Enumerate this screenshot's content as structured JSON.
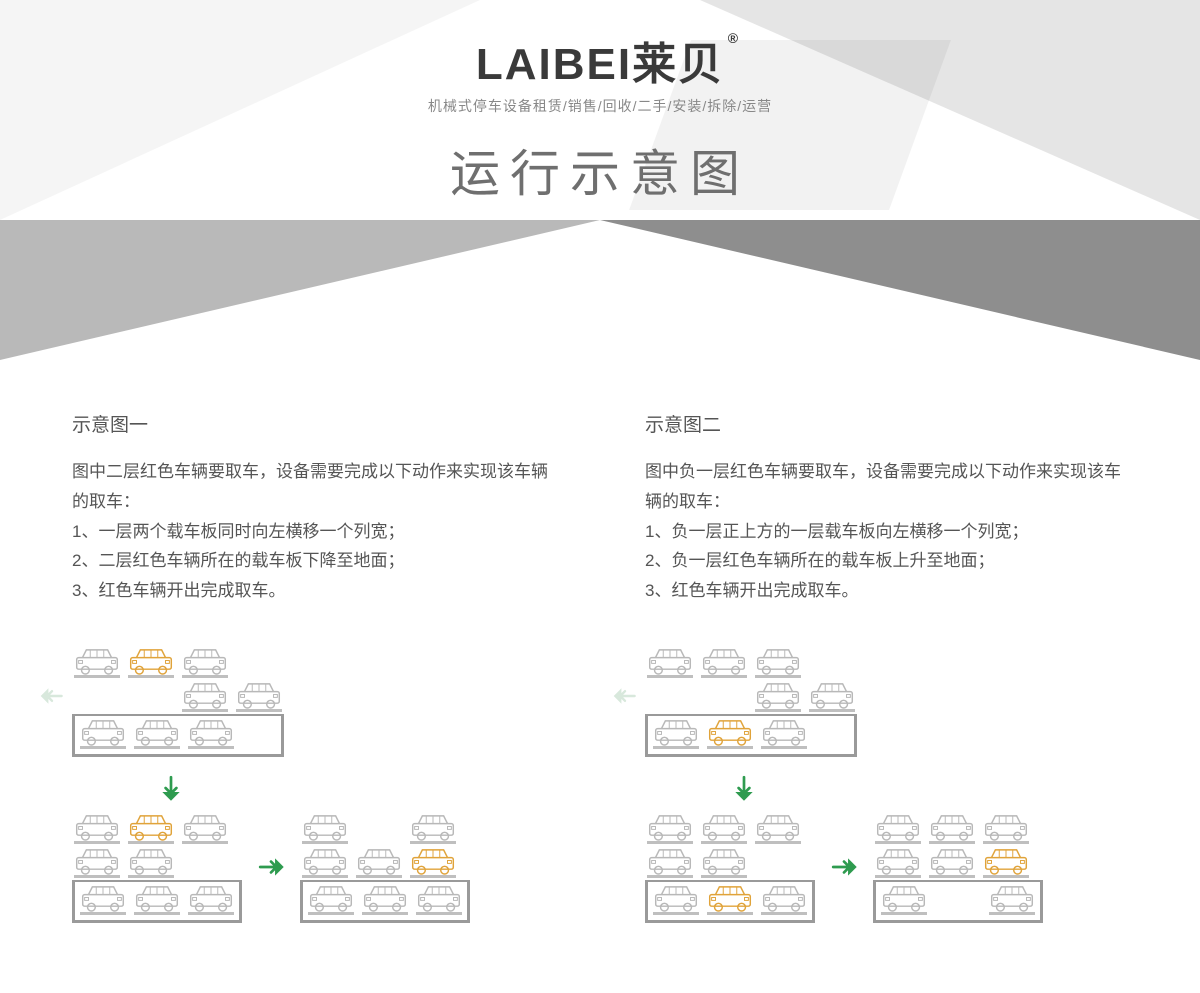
{
  "header": {
    "brand": "LAIBEI莱贝",
    "reg_mark": "®",
    "tagline": "机械式停车设备租赁/销售/回收/二手/安装/拆除/运营",
    "title": "运行示意图",
    "panel_colors": {
      "top_face": "#ffffff",
      "left_fold": "#bdbdbd",
      "right_fold": "#8e8e8e",
      "left_shade": "rgba(0,0,0,0.04)",
      "right_shade": "rgba(0,0,0,0.10)"
    }
  },
  "colors": {
    "car_normal": "#b8b8b8",
    "car_highlight": "#e0a33a",
    "arrow_green": "#2e9b4f",
    "arrow_faint": "#d8e8dc",
    "pit_border": "#9a9a9a",
    "text": "#555555"
  },
  "section1": {
    "title": "示意图一",
    "desc_lines": [
      "图中二层红色车辆要取车，设备需要完成以下动作来实现该车辆的取车：",
      "1、一层两个载车板同时向左横移一个列宽；",
      "2、二层红色车辆所在的载车板下降至地面；",
      "3、红色车辆开出完成取车。"
    ],
    "stages": [
      {
        "id": "s1_stage1",
        "side_arrow": {
          "dir": "left",
          "faint": true,
          "row": 1
        },
        "levels": [
          {
            "cars": [
              "n",
              "h",
              "n"
            ]
          },
          {
            "cars": [
              "_",
              "n",
              "n"
            ],
            "shift": "right"
          },
          {
            "cars": [
              "n",
              "n",
              "n"
            ],
            "pit": true
          }
        ]
      },
      {
        "id": "s1_stage2",
        "side_arrow": {
          "dir": "down",
          "faint": true,
          "inside": true,
          "col": 1
        },
        "levels": [
          {
            "cars": [
              "n",
              "h",
              "n"
            ]
          },
          {
            "cars": [
              "n",
              "n",
              "_"
            ],
            "shift": "left"
          },
          {
            "cars": [
              "n",
              "n",
              "n"
            ],
            "pit": true
          }
        ]
      },
      {
        "id": "s1_stage3",
        "levels": [
          {
            "cars": [
              "n",
              "_",
              "n"
            ]
          },
          {
            "cars": [
              "n",
              "n",
              "h"
            ],
            "shift": "left",
            "out": true
          },
          {
            "cars": [
              "n",
              "n",
              "n"
            ],
            "pit": true
          }
        ]
      }
    ]
  },
  "section2": {
    "title": "示意图二",
    "desc_lines": [
      "图中负一层红色车辆要取车，设备需要完成以下动作来实现该车辆的取车：",
      "1、负一层正上方的一层载车板向左横移一个列宽；",
      "2、负一层红色车辆所在的载车板上升至地面；",
      "3、红色车辆开出完成取车。"
    ],
    "stages": [
      {
        "id": "s2_stage1",
        "side_arrow": {
          "dir": "left",
          "faint": true,
          "row": 1
        },
        "levels": [
          {
            "cars": [
              "n",
              "n",
              "n"
            ]
          },
          {
            "cars": [
              "_",
              "n",
              "n"
            ],
            "shift": "right"
          },
          {
            "cars": [
              "n",
              "h",
              "n"
            ],
            "pit": true
          }
        ]
      },
      {
        "id": "s2_stage2",
        "side_arrow": {
          "dir": "up",
          "faint": true,
          "inside": true,
          "col": 1
        },
        "levels": [
          {
            "cars": [
              "n",
              "n",
              "n"
            ]
          },
          {
            "cars": [
              "n",
              "n",
              "_"
            ],
            "shift": "left"
          },
          {
            "cars": [
              "n",
              "h",
              "n"
            ],
            "pit": true
          }
        ]
      },
      {
        "id": "s2_stage3",
        "levels": [
          {
            "cars": [
              "n",
              "n",
              "n"
            ]
          },
          {
            "cars": [
              "n",
              "n",
              "h"
            ],
            "shift": "left",
            "out": true
          },
          {
            "cars": [
              "n",
              "_",
              "n"
            ],
            "pit": true
          }
        ]
      }
    ]
  }
}
